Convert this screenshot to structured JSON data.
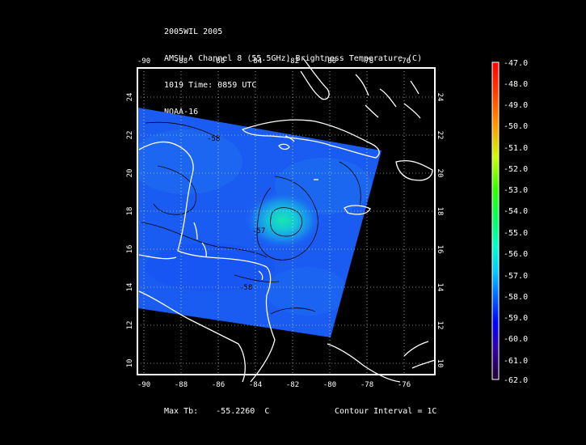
{
  "header": {
    "line1": "2005WIL 2005",
    "line2": "AMSU-A Channel 8 (55.5GHz) Brightness Temperature (C)",
    "line3": "1019 Time: 0859 UTC",
    "line4": "NOAA-16"
  },
  "axes": {
    "lon_ticks": [
      "-90",
      "-88",
      "-86",
      "-84",
      "-82",
      "-80",
      "-78",
      "-76"
    ],
    "lat_ticks": [
      "10",
      "12",
      "14",
      "16",
      "18",
      "20",
      "22",
      "24"
    ],
    "lon_range": [
      -90.3,
      -74.5
    ],
    "lat_range": [
      9.5,
      24.9
    ]
  },
  "contour_labels": [
    "-58",
    "-57",
    "-58"
  ],
  "colorbar": {
    "labels": [
      "-47.0",
      "-48.0",
      "-49.0",
      "-50.0",
      "-51.0",
      "-52.0",
      "-53.0",
      "-54.0",
      "-55.0",
      "-56.0",
      "-57.0",
      "-58.0",
      "-59.0",
      "-60.0",
      "-61.0",
      "-62.0"
    ]
  },
  "footer": {
    "max_label": "Max Tb:",
    "max_value": "-55.2260",
    "max_unit": "C",
    "contour_interval": "Contour Interval = 1C"
  },
  "colors": {
    "background": "#000000",
    "field_base": "#1a5cf2",
    "field_warm": "#19e6b0",
    "coastline": "#ffffff",
    "contour": "#000000"
  }
}
